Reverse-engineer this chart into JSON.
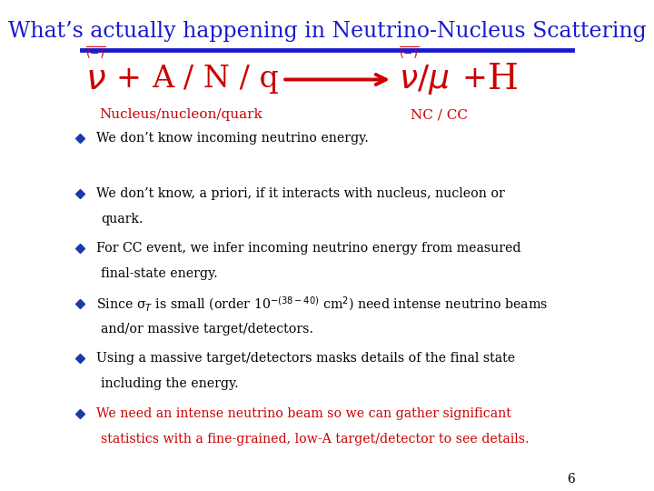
{
  "title": "What’s actually happening in Neutrino-Nucleus Scattering",
  "title_color": "#1a1acd",
  "title_fontsize": 17,
  "bg_color": "#ffffff",
  "reaction_color": "#cc0000",
  "label_color": "#cc0000",
  "bullet_color": "#1a3aaa",
  "slide_number": "6",
  "label_left": "Nucleus/nucleon/quark",
  "label_right": "NC / CC",
  "bullets": [
    {
      "text": "We don’t know incoming neutrino energy.",
      "color": "#000000"
    },
    {
      "text": "We don’t know, a priori, if it interacts with nucleus, nucleon or\nquark.",
      "color": "#000000"
    },
    {
      "text": "For CC event, we infer incoming neutrino energy from measured\nfinal-state energy.",
      "color": "#000000"
    },
    {
      "text": "Since σ$_T$ is small (order 10$^{-(38-40)}$ cm$^2$) need intense neutrino beams\nand/or massive target/detectors.",
      "color": "#000000"
    },
    {
      "text": "Using a massive target/detectors masks details of the final state\nincluding the energy.",
      "color": "#000000"
    },
    {
      "text": "We need an intense neutrino beam so we can gather significant\nstatistics with a fine-grained, low-A target/detector to see details.",
      "color": "#cc0000"
    }
  ]
}
